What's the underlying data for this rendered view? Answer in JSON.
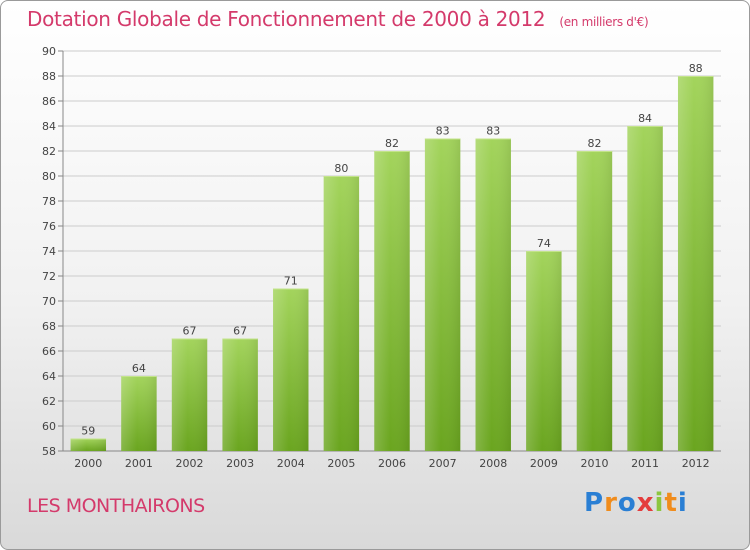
{
  "header": {
    "title": "Dotation Globale de Fonctionnement de 2000 à 2012",
    "unit": "(en milliers d'€)"
  },
  "commune": "LES MONTHAIRONS",
  "logo": {
    "letters": [
      "P",
      "r",
      "o",
      "x",
      "i",
      "t",
      "i"
    ],
    "colors": [
      "#2a7fd4",
      "#f08c1c",
      "#2a7fd4",
      "#e43c3c",
      "#8cc63f",
      "#f08c1c",
      "#2a7fd4"
    ]
  },
  "chart_data": {
    "type": "bar",
    "categories": [
      "2000",
      "2001",
      "2002",
      "2003",
      "2004",
      "2005",
      "2006",
      "2007",
      "2008",
      "2009",
      "2010",
      "2011",
      "2012"
    ],
    "values": [
      59,
      64,
      67,
      67,
      71,
      80,
      82,
      83,
      83,
      74,
      82,
      84,
      88
    ],
    "ylim": [
      58,
      90
    ],
    "yticks": [
      58,
      60,
      62,
      64,
      66,
      68,
      70,
      72,
      74,
      76,
      78,
      80,
      82,
      84,
      86,
      88,
      90
    ],
    "grid": true,
    "bar_color_top": "#a3d45c",
    "bar_color_bottom": "#6aa51f"
  }
}
